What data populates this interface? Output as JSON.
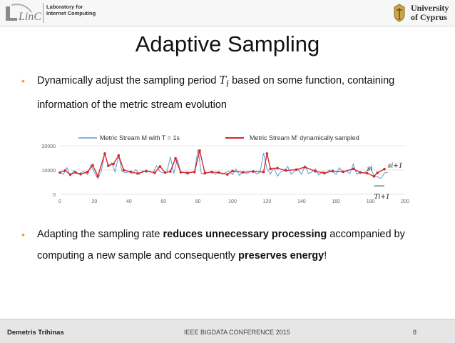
{
  "header": {
    "logo_lic_text": "LinC",
    "lab_line1": "Laboratory for",
    "lab_line2": "Internet Computing",
    "university_line1": "University",
    "university_line2": "of Cyprus"
  },
  "slide": {
    "title": "Adaptive Sampling",
    "bullet1_part1": "Dynamically adjust the sampling period ",
    "bullet1_math": "T",
    "bullet1_math_sub": "i",
    "bullet1_part2": " based on some function, containing information of the metric stream evolution",
    "bullet2_part1": "Adapting the sampling rate ",
    "bullet2_bold1": "reduces unnecessary processing",
    "bullet2_part2": " accompanied by computing a new sample and consequently ",
    "bullet2_bold2": "preserves energy",
    "bullet2_part3": "!"
  },
  "chart_data": {
    "type": "line",
    "legend": [
      {
        "label_prefix": "Metric Stream ",
        "label_math": "M",
        "label_mid": " with ",
        "label_math2": "T = 1s",
        "color": "#5b9bd5"
      },
      {
        "label_prefix": "Metric Stream ",
        "label_math": "M'",
        "label_mid": " dynamically sampled",
        "label_math2": "",
        "color": "#d62728"
      }
    ],
    "xlim": [
      0,
      200
    ],
    "ylim": [
      0,
      20000
    ],
    "x_ticks": [
      "0",
      "20",
      "40",
      "60",
      "80",
      "100",
      "120",
      "140",
      "160",
      "180",
      "200"
    ],
    "y_ticks": [
      "0",
      "10000",
      "20000"
    ],
    "annotations": {
      "s_i": "s",
      "s_i_sub": "i",
      "s_i1": "s",
      "s_i1_sub": "i+1",
      "T_i1": "T",
      "T_i1_sub": "i+1"
    },
    "series": [
      {
        "color": "#5b9bd5",
        "x": [
          0,
          2,
          4,
          6,
          8,
          10,
          12,
          14,
          16,
          18,
          20,
          22,
          24,
          26,
          28,
          30,
          32,
          34,
          36,
          38,
          40,
          42,
          44,
          46,
          48,
          50,
          52,
          54,
          56,
          58,
          60,
          62,
          64,
          66,
          68,
          70,
          72,
          74,
          76,
          78,
          80,
          82,
          84,
          86,
          88,
          90,
          92,
          94,
          96,
          98,
          100,
          102,
          104,
          106,
          108,
          110,
          112,
          114,
          116,
          118,
          120,
          122,
          124,
          126,
          128,
          130,
          132,
          134,
          136,
          138,
          140,
          142,
          144,
          146,
          148,
          150,
          152,
          154,
          156,
          158,
          160,
          162,
          164,
          166,
          168,
          170,
          172,
          174,
          176,
          178,
          180,
          182,
          184,
          186,
          188,
          190
        ],
        "y": [
          9000,
          8200,
          11000,
          7600,
          9800,
          8400,
          8800,
          9500,
          8100,
          12000,
          9000,
          6500,
          9600,
          17000,
          11500,
          13000,
          9200,
          16000,
          9500,
          8800,
          9300,
          8600,
          10200,
          8200,
          9700,
          9100,
          9600,
          8900,
          11800,
          9300,
          8800,
          9100,
          15500,
          8600,
          14500,
          9200,
          9000,
          8200,
          9200,
          9500,
          18500,
          8600,
          8300,
          9100,
          9500,
          8200,
          9400,
          8300,
          9000,
          9600,
          8100,
          10400,
          7800,
          9300,
          8500,
          9200,
          9800,
          8400,
          9100,
          17000,
          10500,
          8400,
          11000,
          7500,
          9200,
          9800,
          11500,
          8300,
          9600,
          10200,
          8200,
          11800,
          8600,
          9300,
          10500,
          8000,
          9300,
          8400,
          10000,
          9300,
          8200,
          11000,
          8900,
          9600,
          8500,
          12500,
          8200,
          9400,
          8800,
          9600,
          11000,
          7700,
          7200,
          6500,
          8800,
          9100
        ]
      },
      {
        "color": "#d62728",
        "x": [
          0,
          3,
          6,
          9,
          12,
          16,
          19,
          22,
          26,
          28,
          31,
          34,
          37,
          41,
          45,
          50,
          55,
          58,
          61,
          64,
          67,
          70,
          74,
          78,
          81,
          84,
          88,
          92,
          97,
          100,
          106,
          112,
          118,
          120,
          122,
          126,
          131,
          137,
          142,
          148,
          153,
          158,
          164,
          170,
          174,
          178,
          182,
          184,
          188
        ],
        "y": [
          9000,
          9800,
          8200,
          9100,
          8300,
          9200,
          12000,
          7500,
          16800,
          11800,
          12500,
          16000,
          10000,
          9300,
          8600,
          9600,
          8900,
          11500,
          9000,
          9400,
          14800,
          9100,
          8900,
          9200,
          18000,
          8800,
          9200,
          9000,
          8200,
          9600,
          9100,
          9400,
          9200,
          16800,
          10500,
          10800,
          9800,
          10200,
          11200,
          9500,
          8800,
          9600,
          9300,
          10500,
          9000,
          8700,
          7400,
          8900,
          10400
        ]
      }
    ]
  },
  "footer": {
    "author": "Demetris Trihinas",
    "conference": "IEEE BIGDATA CONFERENCE 2015",
    "page": "8"
  }
}
